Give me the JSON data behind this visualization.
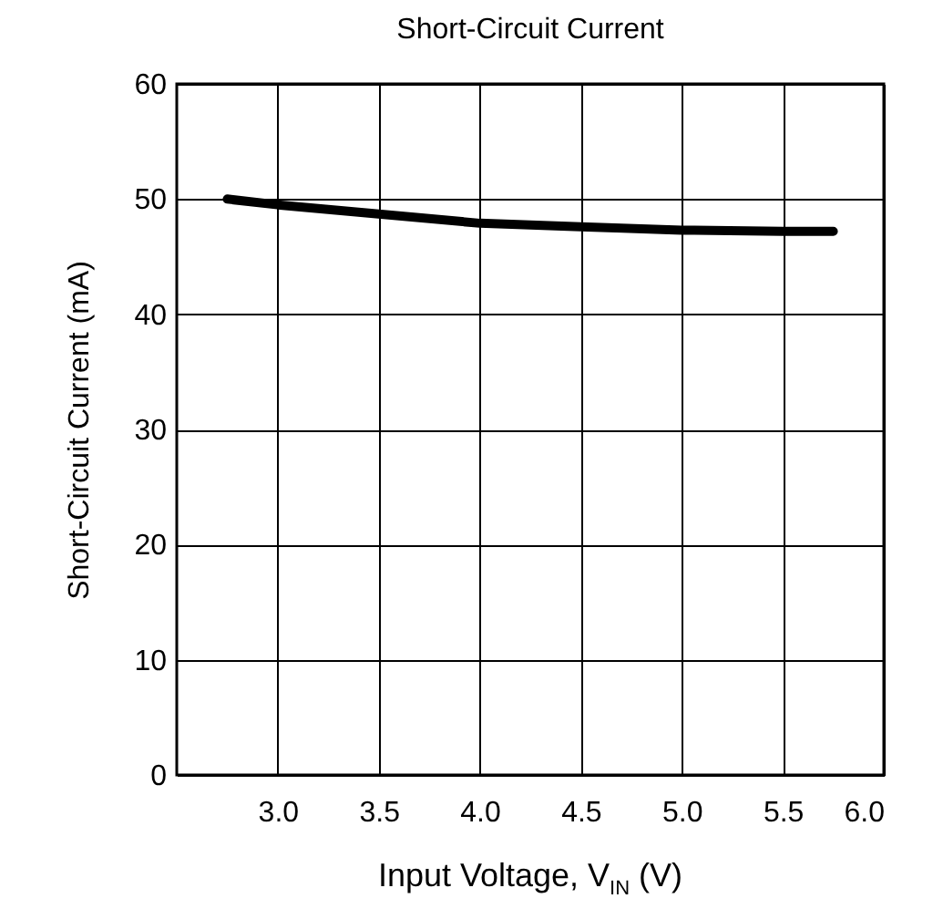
{
  "chart_data": {
    "type": "line",
    "title": "Short-Circuit Current",
    "xlabel": "Input Voltage, V$_{IN}$ (V)",
    "ylabel": "Short-Circuit Current (mA)",
    "x": [
      2.75,
      3.0,
      3.5,
      4.0,
      4.5,
      5.0,
      5.5,
      5.75
    ],
    "series": [
      {
        "color": "#000000",
        "values": [
          50.0,
          49.5,
          48.7,
          47.9,
          47.6,
          47.3,
          47.2,
          47.2
        ]
      }
    ],
    "xlim": [
      2.5,
      6.0
    ],
    "xticks": [
      {
        "value": 3,
        "label": "3.0"
      },
      {
        "value": 3.5,
        "label": "3.5"
      },
      {
        "value": 4,
        "label": "4.0"
      },
      {
        "value": 4.5,
        "label": "4.5"
      },
      {
        "value": 5,
        "label": "5.0"
      },
      {
        "value": 5.5,
        "label": "5.5"
      },
      {
        "value": 6,
        "label": "6.0"
      }
    ],
    "ylim": [
      0,
      60
    ],
    "yticks": [
      0,
      10,
      20,
      30,
      40,
      50,
      60
    ],
    "grid": true,
    "line_style": "solid"
  }
}
